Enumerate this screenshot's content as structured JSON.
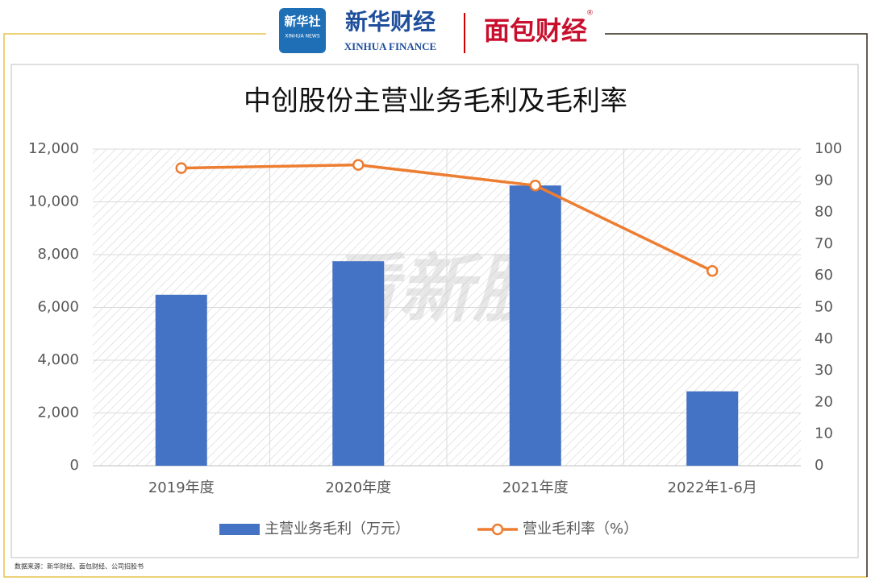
{
  "header": {
    "logo_cn": "新华社",
    "logo_en": "XINHUA NEWS",
    "brand_cn": "新华财经",
    "brand_en": "XINHUA FINANCE",
    "partner": "面包财经",
    "registered": "®"
  },
  "chart_data": {
    "type": "bar",
    "title": "中创股份主营业务毛利及毛利率",
    "categories": [
      "2019年度",
      "2020年度",
      "2021年度",
      "2022年1-6月"
    ],
    "series": [
      {
        "name": "主营业务毛利（万元）",
        "type": "bar",
        "color": "#4472c4",
        "values": [
          6480,
          7750,
          10620,
          2820
        ]
      },
      {
        "name": "营业毛利率（%）",
        "type": "line",
        "axis": "y2",
        "color": "#ed7d31",
        "values": [
          94,
          95,
          88.5,
          61.5
        ]
      }
    ],
    "ylim": [
      0,
      12000
    ],
    "yticks": [
      0,
      {
        "value": 2000,
        "label": "2,000"
      },
      {
        "value": 4000,
        "label": "4,000"
      },
      {
        "value": 6000,
        "label": "6,000"
      },
      {
        "value": 8000,
        "label": "8,000"
      },
      {
        "value": 10000,
        "label": "10,000"
      },
      {
        "value": 12000,
        "label": "12,000"
      }
    ],
    "y2lim": [
      0,
      100
    ],
    "y2ticks": [
      0,
      10,
      20,
      30,
      40,
      50,
      60,
      70,
      80,
      90,
      100
    ],
    "grid": true,
    "legend": "bottom"
  },
  "watermark": "看新股",
  "footer": {
    "source": "数据来源：新华财经、面包财经、公司招股书"
  }
}
